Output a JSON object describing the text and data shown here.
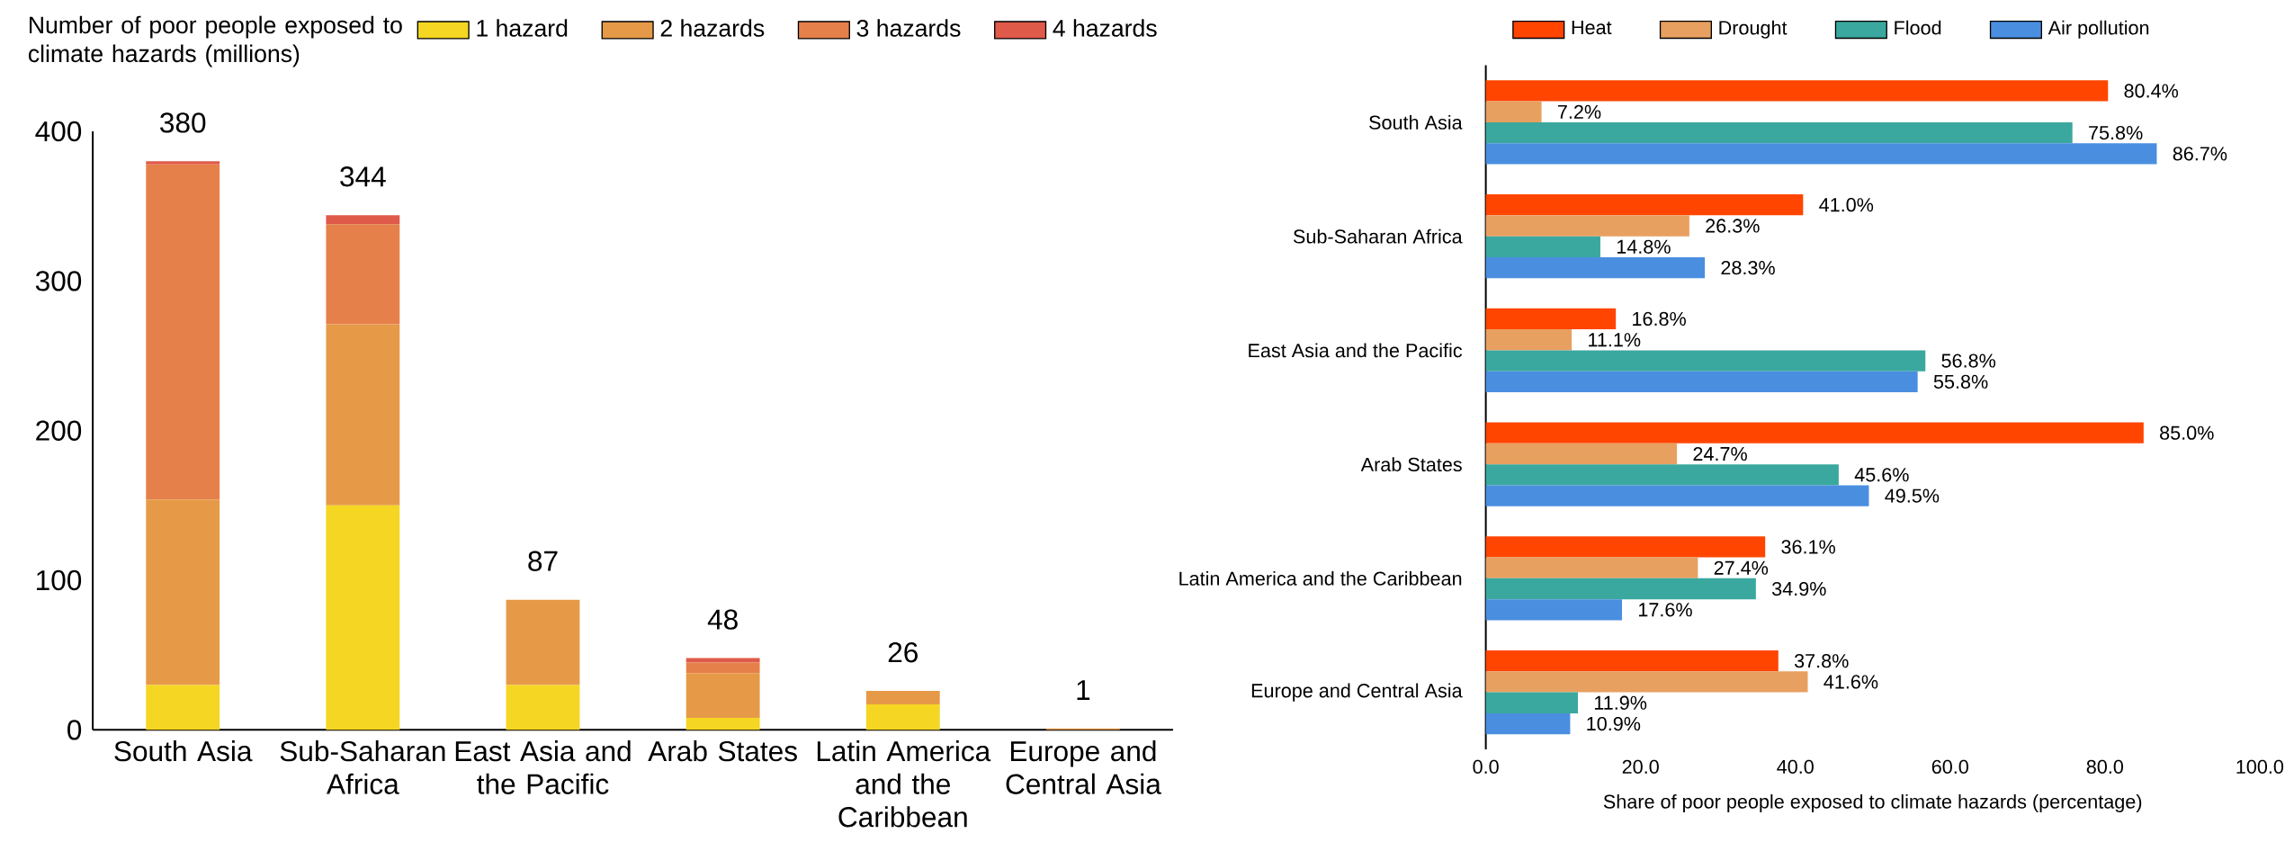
{
  "chart_data": [
    {
      "type": "bar",
      "ylabel": "Number of poor people exposed to climate hazards (millions)",
      "stacked": true,
      "categories": [
        "South Asia",
        "Sub-Saharan Africa",
        "East Asia and the Pacific",
        "Arab States",
        "Latin America and the Caribbean",
        "Europe and Central Asia"
      ],
      "series": [
        {
          "name": "1 hazard",
          "color": "#f5d622",
          "values": [
            30,
            150,
            30,
            8,
            17,
            0
          ]
        },
        {
          "name": "2 hazards",
          "color": "#e69a48",
          "values": [
            124,
            121,
            57,
            30,
            9,
            1
          ]
        },
        {
          "name": "3 hazards",
          "color": "#e6804a",
          "values": [
            224,
            67,
            0,
            7,
            0,
            0
          ]
        },
        {
          "name": "4 hazards",
          "color": "#e05a4a",
          "values": [
            2,
            6,
            0,
            3,
            0,
            0
          ]
        }
      ],
      "totals": [
        "380",
        "344",
        "87",
        "48",
        "26",
        "1"
      ],
      "ylim": [
        0,
        400
      ],
      "yticks": [
        0,
        100,
        200,
        300,
        400
      ],
      "legend": "top right",
      "grid": false
    },
    {
      "type": "bar",
      "orientation": "horizontal",
      "xlabel": "Share of poor people exposed to climate hazards (percentage)",
      "categories": [
        "South Asia",
        "Sub-Saharan Africa",
        "East Asia and the Pacific",
        "Arab States",
        "Latin America and the Caribbean",
        "Europe and Central Asia"
      ],
      "series": [
        {
          "name": "Heat",
          "color": "#ff4500",
          "values": [
            80.4,
            41.0,
            16.8,
            85.0,
            36.1,
            37.8
          ],
          "value_labels": [
            "80.4%",
            "41.0%",
            "16.8%",
            "85.0%",
            "36.1%",
            "37.8%"
          ]
        },
        {
          "name": "Drought",
          "color": "#e8a060",
          "values": [
            7.2,
            26.3,
            11.1,
            24.7,
            27.4,
            41.6
          ],
          "value_labels": [
            "7.2%",
            "26.3%",
            "11.1%",
            "24.7%",
            "27.4%",
            "41.6%"
          ]
        },
        {
          "name": "Flood",
          "color": "#3aa89e",
          "values": [
            75.8,
            14.8,
            56.8,
            45.6,
            34.9,
            11.9
          ],
          "value_labels": [
            "75.8%",
            "14.8%",
            "56.8%",
            "45.6%",
            "34.9%",
            "11.9%"
          ]
        },
        {
          "name": "Air pollution",
          "color": "#4a8ee0",
          "values": [
            86.7,
            28.3,
            55.8,
            49.5,
            17.6,
            10.9
          ],
          "value_labels": [
            "86.7%",
            "28.3%",
            "55.8%",
            "49.5%",
            "17.6%",
            "10.9%"
          ]
        }
      ],
      "xlim": [
        0,
        100
      ],
      "xticks": [
        {
          "value": 0,
          "label": "0.0"
        },
        {
          "value": 20,
          "label": "20.0"
        },
        {
          "value": 40,
          "label": "40.0"
        },
        {
          "value": 60,
          "label": "60.0"
        },
        {
          "value": 80,
          "label": "80.0"
        },
        {
          "value": 100,
          "label": "100.0"
        }
      ],
      "legend": "top",
      "grid": false
    }
  ]
}
